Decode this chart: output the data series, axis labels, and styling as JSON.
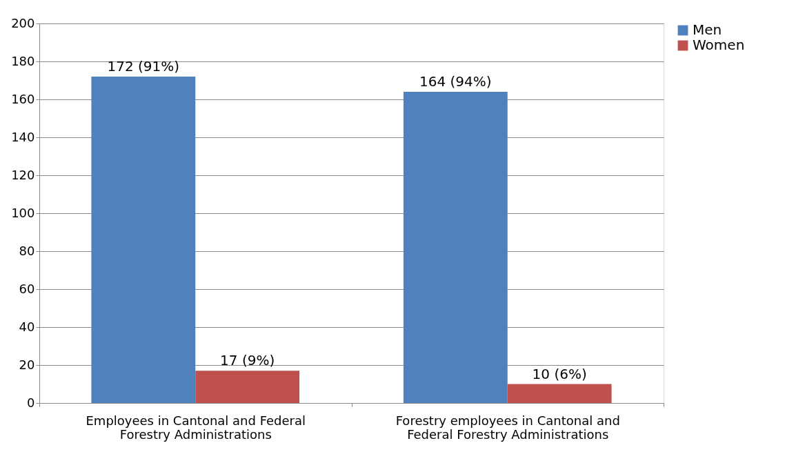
{
  "chart_data": {
    "type": "bar",
    "categories": [
      "Employees in Cantonal and Federal Forestry Administrations",
      "Forestry employees in Cantonal and Federal Forestry Administrations"
    ],
    "series": [
      {
        "name": "Men",
        "color": "#4f81bd",
        "values": [
          172,
          164
        ],
        "value_labels": [
          "172 (91%)",
          "164 (94%)"
        ]
      },
      {
        "name": "Women",
        "color": "#c0504d",
        "values": [
          17,
          10
        ],
        "value_labels": [
          "17 (9%)",
          "10 (6%)"
        ]
      }
    ],
    "ylim": [
      0,
      200
    ],
    "yticks": [
      0,
      20,
      40,
      60,
      80,
      100,
      120,
      140,
      160,
      180,
      200
    ],
    "grid": "y",
    "legend": "right"
  }
}
